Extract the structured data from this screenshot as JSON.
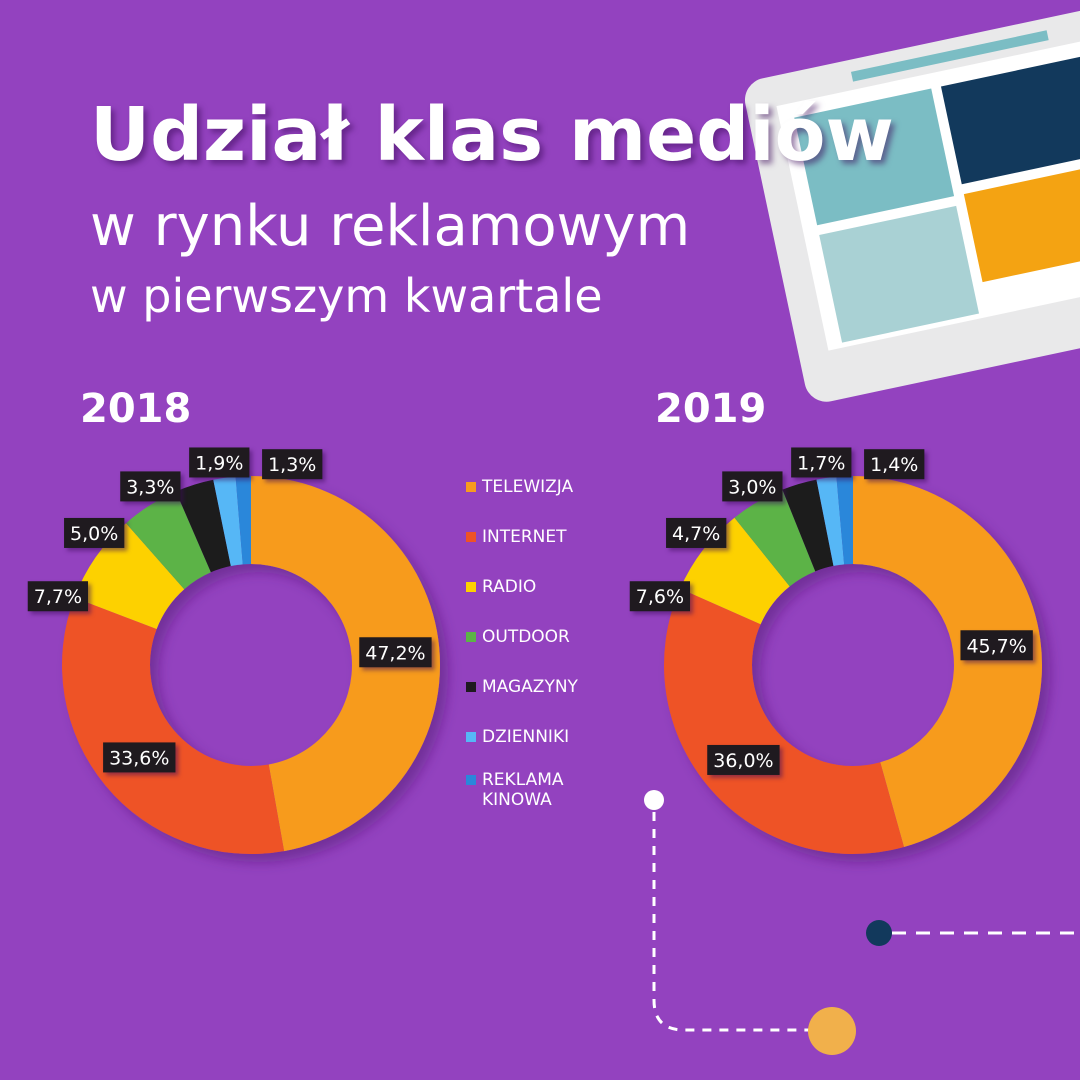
{
  "header": {
    "title": "Udział klas mediów",
    "subtitle": [
      "w rynku reklamowym",
      "w pierwszym kwartale"
    ]
  },
  "legend": {
    "categories": [
      "TELEWIZJA",
      "INTERNET",
      "RADIO",
      "OUTDOOR",
      "MAGAZYNY",
      "DZIENNIKI",
      "REKLAMA KINOWA"
    ],
    "colors": [
      "#f79b1f",
      "#ee5326",
      "#fdd100",
      "#5cb346",
      "#1f1a1f",
      "#56b7f6",
      "#2a87da"
    ]
  },
  "chart_data": [
    {
      "type": "donut",
      "title": "2018",
      "values": [
        47.2,
        33.6,
        7.7,
        5.0,
        3.3,
        1.9,
        1.3
      ],
      "value_labels": [
        "47,2%",
        "33,6%",
        "7,7%",
        "5,0%",
        "3,3%",
        "1,9%",
        "1,3%"
      ]
    },
    {
      "type": "donut",
      "title": "2019",
      "values": [
        45.7,
        36.0,
        7.6,
        4.7,
        3.0,
        1.7,
        1.4
      ],
      "value_labels": [
        "45,7%",
        "36,0%",
        "7,6%",
        "4,7%",
        "3,0%",
        "1,7%",
        "1,4%"
      ]
    }
  ]
}
